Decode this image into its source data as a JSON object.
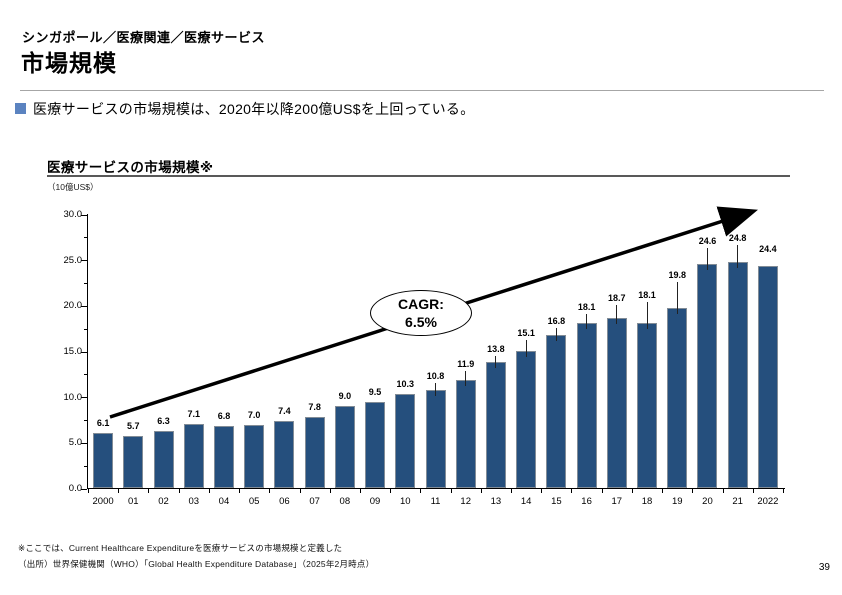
{
  "page": {
    "breadcrumb": "シンガポール／医療関連／医療サービス",
    "title": "市場規模",
    "bullet_text": "医療サービスの市場規模は、2020年以降200億US$を上回っている。",
    "page_number": "39"
  },
  "footnotes": [
    "※ここでは、Current Healthcare Expenditureを医療サービスの市場規模と定義した",
    "（出所）世界保健機関（WHO）「Global Health Expenditure Database」（2025年2月時点）"
  ],
  "chart_data": {
    "type": "bar",
    "title": "医療サービスの市場規模※",
    "unit_label": "（10億US$）",
    "ylabel": "10億US$",
    "categories": [
      "2000",
      "01",
      "02",
      "03",
      "04",
      "05",
      "06",
      "07",
      "08",
      "09",
      "10",
      "11",
      "12",
      "13",
      "14",
      "15",
      "16",
      "17",
      "18",
      "19",
      "20",
      "21",
      "2022"
    ],
    "values": [
      6.1,
      5.7,
      6.3,
      7.1,
      6.8,
      7.0,
      7.4,
      7.8,
      9.0,
      9.5,
      10.3,
      10.8,
      11.9,
      13.8,
      15.1,
      16.8,
      18.1,
      18.7,
      18.1,
      19.8,
      24.6,
      24.8,
      24.4
    ],
    "ylim": [
      0,
      30
    ],
    "yticks": [
      0,
      5,
      10,
      15,
      20,
      25,
      30
    ],
    "ytick_labels": [
      "0.0",
      "5.0",
      "10.0",
      "15.0",
      "20.0",
      "25.0",
      "30.0"
    ],
    "grid": false,
    "bar_color": "#254f7d",
    "annotation": {
      "line1": "CAGR:",
      "line2": "6.5%"
    },
    "label_lifts": [
      3,
      3,
      3,
      3,
      3,
      3,
      3,
      3,
      3,
      3,
      3,
      7,
      9,
      6,
      11,
      7,
      9,
      13,
      21,
      26,
      16,
      17,
      10
    ],
    "label_leaders": [
      false,
      false,
      false,
      false,
      false,
      false,
      false,
      false,
      false,
      false,
      false,
      true,
      true,
      true,
      true,
      true,
      true,
      true,
      true,
      true,
      true,
      true,
      false
    ]
  }
}
